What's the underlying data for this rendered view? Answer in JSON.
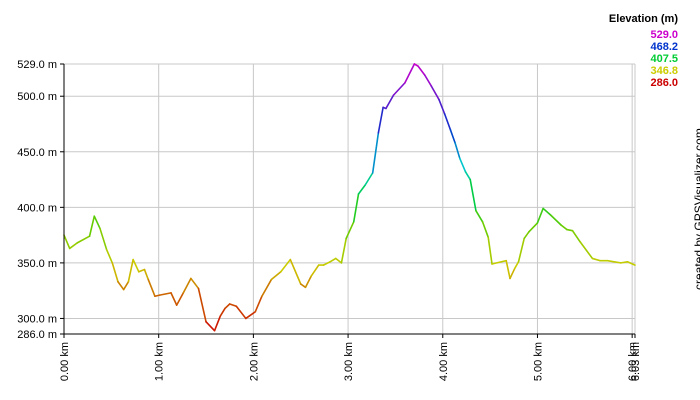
{
  "chart_data": {
    "type": "line",
    "title": "",
    "xlabel": "",
    "ylabel": "",
    "x_unit": "km",
    "y_unit": "m",
    "xlim": [
      0,
      6.03
    ],
    "ylim": [
      286.0,
      529.0
    ],
    "grid": true,
    "x_ticks": [
      "0.00 km",
      "1.00 km",
      "2.00 km",
      "3.00 km",
      "4.00 km",
      "5.00 km",
      "6.00 km",
      "6.03 km"
    ],
    "y_ticks": [
      "529.0 m",
      "500.0 m",
      "450.0 m",
      "400.0 m",
      "350.0 m",
      "300.0 m",
      "286.0 m"
    ],
    "legend": {
      "title": "Elevation (m)",
      "placement": "top-right",
      "entries": [
        {
          "label": "529.0",
          "color": "#cc00cc"
        },
        {
          "label": "468.2",
          "color": "#0033cc"
        },
        {
          "label": "407.5",
          "color": "#00cc33"
        },
        {
          "label": "346.8",
          "color": "#cccc00"
        },
        {
          "label": "286.0",
          "color": "#cc0000"
        }
      ]
    },
    "series": [
      {
        "x": [
          0.0,
          0.06,
          0.14,
          0.27,
          0.32,
          0.38,
          0.45,
          0.51,
          0.57,
          0.63,
          0.68,
          0.73,
          0.79,
          0.85,
          0.89,
          0.96,
          1.01,
          1.13,
          1.19,
          1.26,
          1.34,
          1.42,
          1.5,
          1.59,
          1.65,
          1.7,
          1.75,
          1.82,
          1.92,
          2.02,
          2.09,
          2.19,
          2.29,
          2.39,
          2.5,
          2.55,
          2.61,
          2.69,
          2.74,
          2.81,
          2.87,
          2.93,
          2.98,
          3.06,
          3.11,
          3.18,
          3.26,
          3.32,
          3.37,
          3.4,
          3.48,
          3.6,
          3.7,
          3.74,
          3.81,
          3.88,
          3.96,
          4.02,
          4.08,
          4.13,
          4.18,
          4.24,
          4.29,
          4.35,
          4.42,
          4.48,
          4.52,
          4.62,
          4.67,
          4.71,
          4.76,
          4.8,
          4.86,
          4.91,
          5.0,
          5.06,
          5.14,
          5.25,
          5.31,
          5.37,
          5.45,
          5.58,
          5.66,
          5.74,
          5.81,
          5.88,
          5.95,
          6.03
        ],
        "y": [
          375,
          363,
          368,
          374,
          392,
          381,
          362,
          350,
          333,
          326,
          333,
          353,
          342,
          344,
          335,
          320,
          321,
          323,
          312,
          323,
          336,
          327,
          297,
          289,
          302,
          309,
          313,
          311,
          300,
          306,
          320,
          335,
          342,
          353,
          331,
          328,
          338,
          348,
          348,
          351,
          354,
          350,
          372,
          387,
          412,
          420,
          431,
          467,
          490,
          489,
          501,
          512,
          529,
          527,
          519,
          509,
          497,
          484,
          470,
          458,
          444,
          432,
          425,
          397,
          387,
          373,
          349,
          351,
          352,
          336,
          345,
          351,
          372,
          378,
          386,
          399,
          393,
          384,
          380,
          379,
          369,
          354,
          352,
          352,
          351,
          350,
          351,
          348
        ]
      }
    ]
  },
  "watermark": "created by GPSVisualizer.com"
}
